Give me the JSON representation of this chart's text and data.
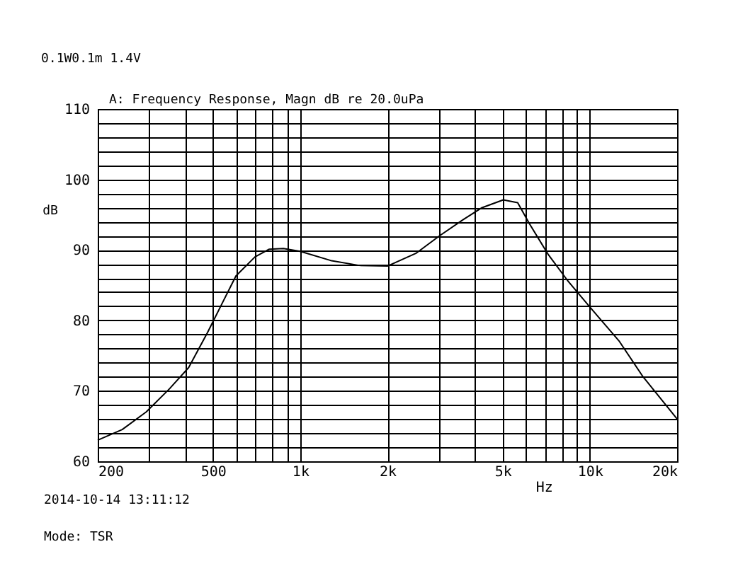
{
  "chart_data": {
    "type": "line",
    "title": "A: Frequency Response, Magn dB re 20.0uPa",
    "subtitle": "0.1W0.1m  1.4V",
    "xlabel": "Hz",
    "ylabel": "dB",
    "annotations": [
      "2014-10-14 13:11:12",
      "Mode: TSR"
    ],
    "log": "x",
    "grid": true,
    "marker": "none",
    "line_style": "solid",
    "xlim": [
      200,
      20000
    ],
    "ylim": [
      60,
      110
    ],
    "xticks": [
      {
        "value": 200,
        "label": "200"
      },
      {
        "value": 300,
        "label": null
      },
      {
        "value": 400,
        "label": null
      },
      {
        "value": 500,
        "label": "500"
      },
      {
        "value": 600,
        "label": null
      },
      {
        "value": 700,
        "label": null
      },
      {
        "value": 800,
        "label": null
      },
      {
        "value": 900,
        "label": null
      },
      {
        "value": 1000,
        "label": "1k"
      },
      {
        "value": 2000,
        "label": "2k"
      },
      {
        "value": 3000,
        "label": null
      },
      {
        "value": 4000,
        "label": null
      },
      {
        "value": 5000,
        "label": "5k"
      },
      {
        "value": 6000,
        "label": null
      },
      {
        "value": 7000,
        "label": null
      },
      {
        "value": 8000,
        "label": null
      },
      {
        "value": 9000,
        "label": null
      },
      {
        "value": 10000,
        "label": "10k"
      },
      {
        "value": 20000,
        "label": "20k"
      }
    ],
    "yticks": [
      60,
      {
        "value": 62,
        "label": null
      },
      {
        "value": 64,
        "label": null
      },
      {
        "value": 66,
        "label": null
      },
      {
        "value": 68,
        "label": null
      },
      70,
      {
        "value": 72,
        "label": null
      },
      {
        "value": 74,
        "label": null
      },
      {
        "value": 76,
        "label": null
      },
      {
        "value": 78,
        "label": null
      },
      80,
      {
        "value": 82,
        "label": null
      },
      {
        "value": 84,
        "label": null
      },
      {
        "value": 86,
        "label": null
      },
      {
        "value": 88,
        "label": null
      },
      90,
      {
        "value": 92,
        "label": null
      },
      {
        "value": 94,
        "label": null
      },
      {
        "value": 96,
        "label": null
      },
      {
        "value": 98,
        "label": null
      },
      100,
      {
        "value": 102,
        "label": null
      },
      {
        "value": 104,
        "label": null
      },
      {
        "value": 106,
        "label": null
      },
      {
        "value": 108,
        "label": null
      },
      110
    ],
    "series": [
      {
        "color": "#000000",
        "x": [
          200,
          243,
          294,
          354,
          412,
          479,
          536,
          600,
          698,
          782,
          875,
          1000,
          1273,
          1596,
          2000,
          2506,
          3028,
          3654,
          4246,
          5024,
          5633,
          6185,
          7194,
          8357,
          10090,
          12650,
          15250,
          20000
        ],
        "values": [
          63.0,
          64.5,
          67.0,
          70.3,
          73.3,
          78.3,
          82.3,
          86.3,
          89.0,
          90.1,
          90.2,
          89.8,
          88.5,
          87.8,
          87.7,
          89.5,
          92.0,
          94.3,
          96.0,
          97.1,
          96.7,
          93.7,
          89.3,
          85.7,
          81.7,
          77.0,
          72.0,
          66.0
        ]
      }
    ]
  }
}
